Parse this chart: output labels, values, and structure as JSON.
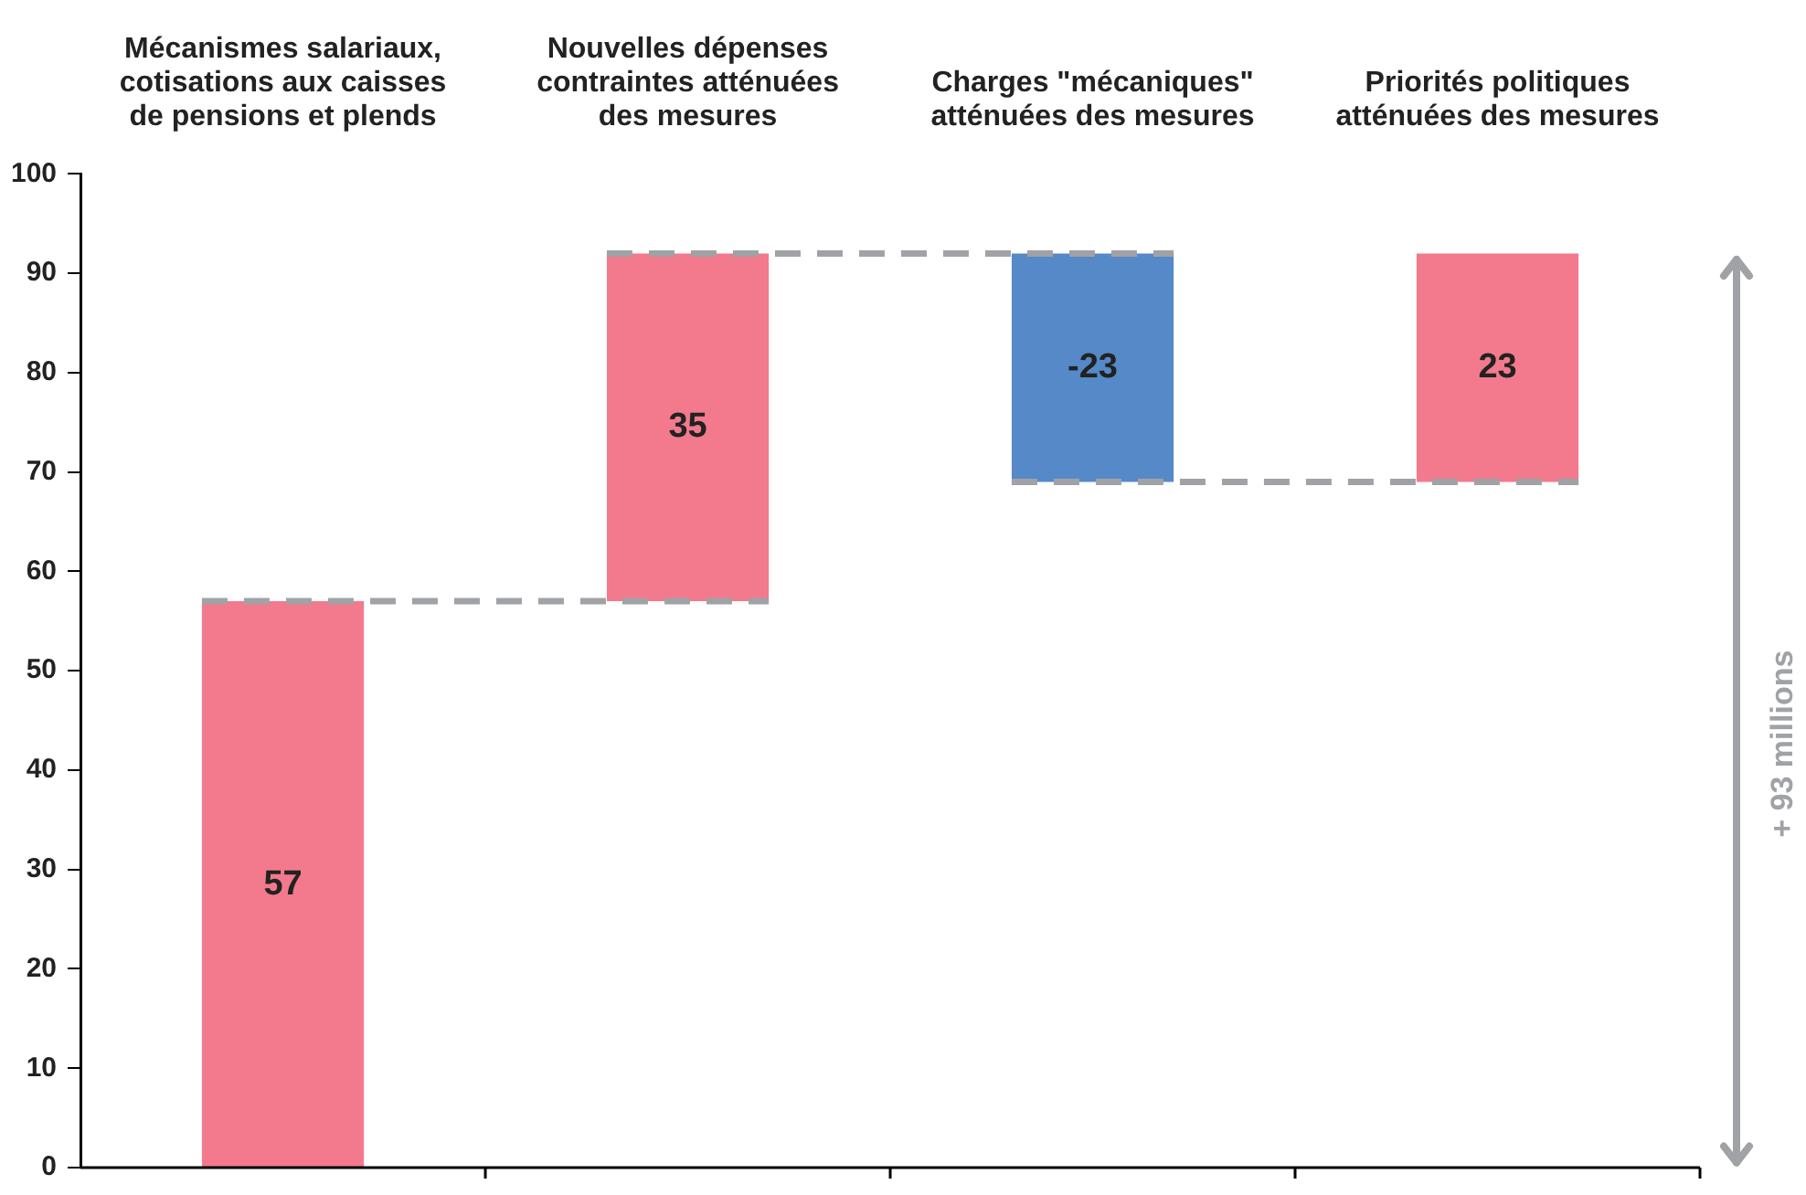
{
  "chart_data": {
    "type": "bar",
    "categories": [
      "Mécanismes salariaux,\ncotisations aux caisses\nde pensions et plends",
      "Nouvelles dépenses\ncontraintes atténuées\ndes mesures",
      "Charges \"mécaniques\"\natténuées des mesures",
      "Priorités politiques\natténuées des mesures"
    ],
    "values": [
      57,
      35,
      -23,
      23
    ],
    "base": [
      0,
      57,
      92,
      69
    ],
    "colors": [
      "#f27a8c",
      "#f27a8c",
      "#5589c8",
      "#f27a8c"
    ],
    "ylim": [
      0,
      100
    ],
    "yticks": [
      0,
      10,
      20,
      30,
      40,
      50,
      60,
      70,
      80,
      90,
      100
    ],
    "ref_lines": [
      {
        "axis": "y",
        "value": 57,
        "color": "#a0a2a6",
        "line_style": "dashed"
      },
      {
        "axis": "y",
        "value": 92,
        "color": "#a0a2a6",
        "line_style": "dashed"
      },
      {
        "axis": "y",
        "value": 69,
        "color": "#a0a2a6",
        "line_style": "dashed"
      }
    ],
    "grid": false,
    "legend": false,
    "data_labels": true,
    "annotations": [
      "+ 93 millions"
    ]
  }
}
